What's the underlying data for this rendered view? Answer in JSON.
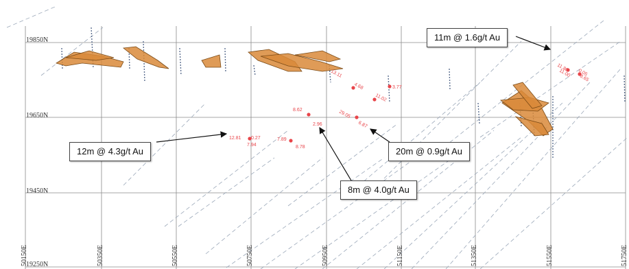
{
  "map": {
    "northing_labels": [
      "19850N",
      "19650N",
      "19450N",
      "19250N"
    ],
    "easting_labels": [
      "50150E",
      "50350E",
      "50550E",
      "50750E",
      "50950E",
      "51150E",
      "51350E",
      "51550E",
      "51750E"
    ]
  },
  "callouts": [
    {
      "id": "callout-11m",
      "text": "11m @ 1.6g/t Au"
    },
    {
      "id": "callout-12m",
      "text": "12m @ 4.3g/t Au"
    },
    {
      "id": "callout-20m",
      "text": "20m @ 0.9g/t Au"
    },
    {
      "id": "callout-8m",
      "text": "8m @ 4.0g/t Au"
    }
  ],
  "assays": [
    "3.77",
    "13.11",
    "4.68",
    "11.02",
    "8.62",
    "2.96",
    "29.05",
    "6.87",
    "12.81",
    "0.27",
    "7.94",
    "7.89",
    "8.78",
    "11.80",
    "11.00",
    "8.65",
    "0.05"
  ],
  "colors": {
    "grid": "#8a8a8a",
    "drill_trace": "#9aa7b8",
    "wireframe": "#d9893a",
    "wireframe_dark": "#7a4a16",
    "assay": "#e8454a",
    "arrow": "#111111"
  }
}
